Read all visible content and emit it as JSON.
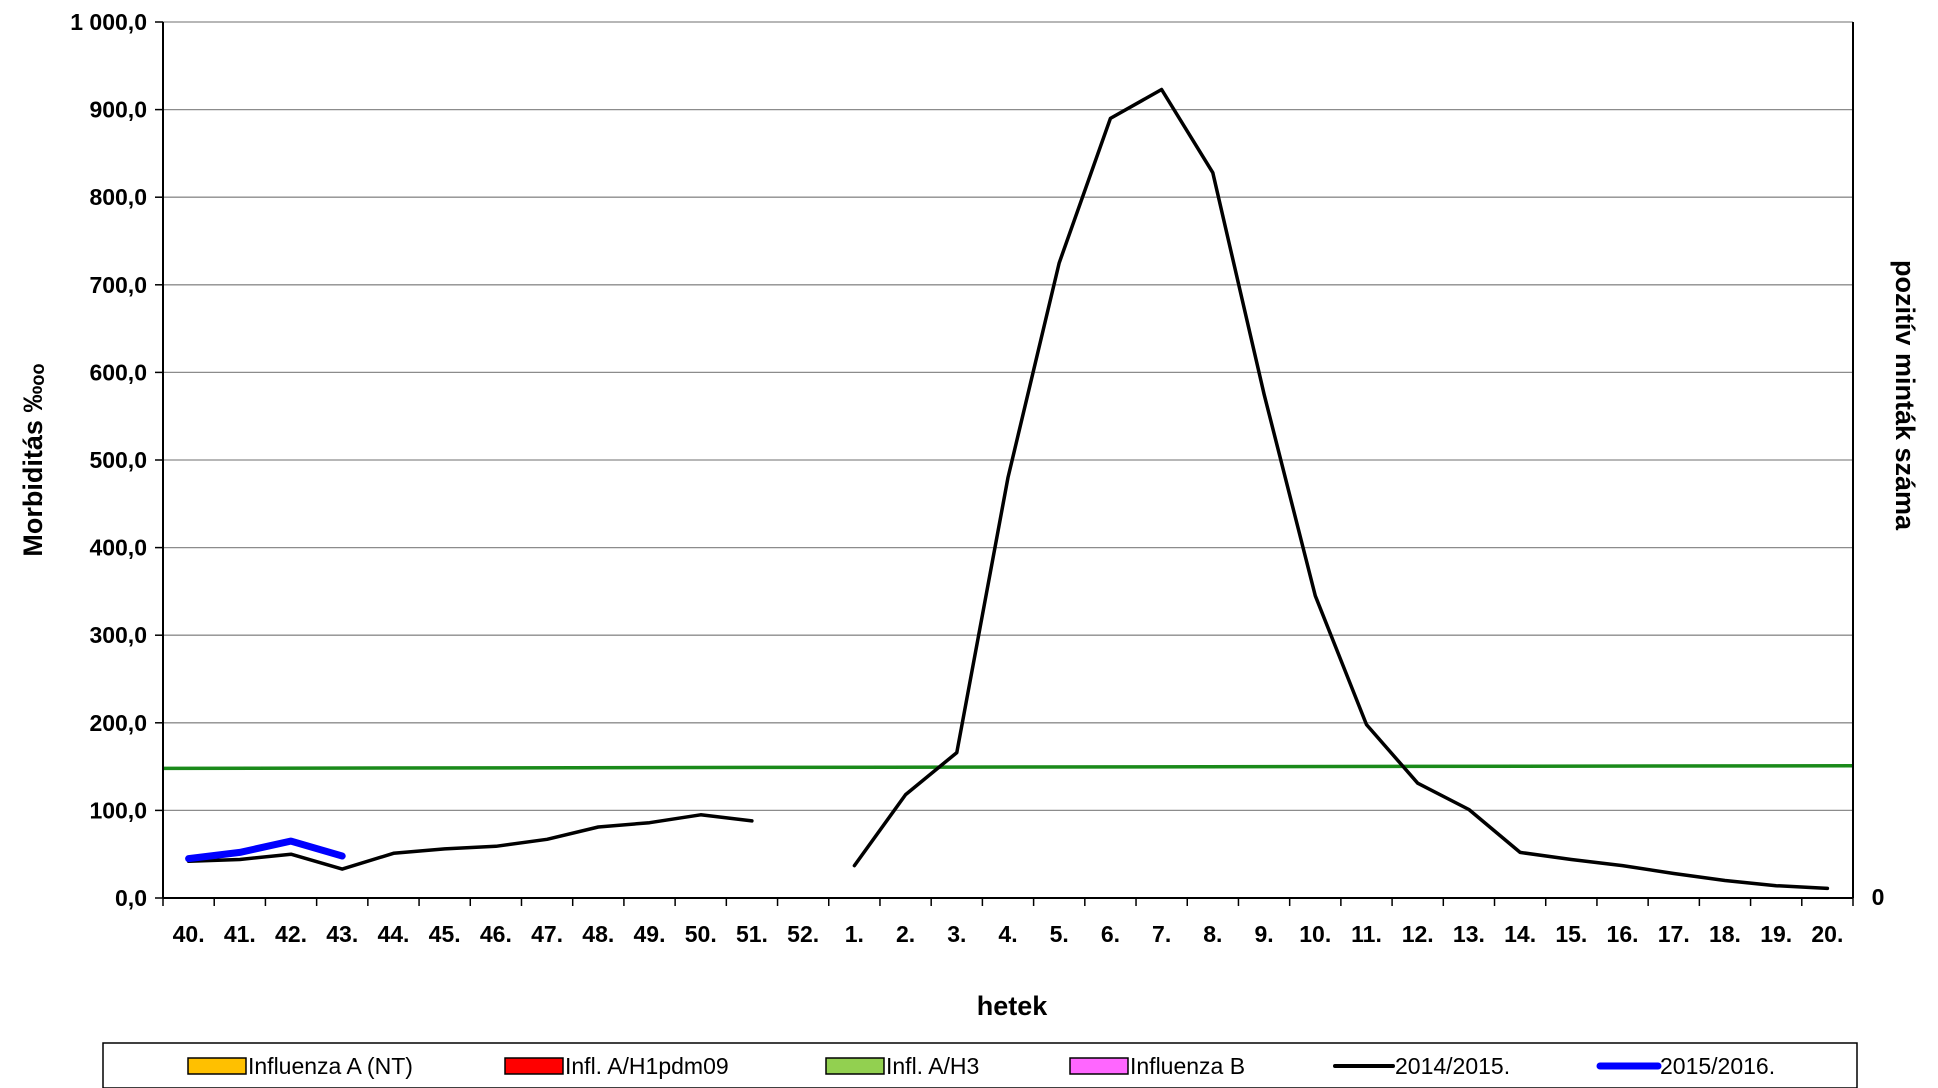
{
  "chart_data": {
    "type": "line",
    "xlabel": "hetek",
    "ylabel": "Morbiditás ‰ₒₒ",
    "ylabel_right": "pozitív minták száma",
    "ylim": [
      0,
      1000
    ],
    "yticks": [
      "0,0",
      "100,0",
      "200,0",
      "300,0",
      "400,0",
      "500,0",
      "600,0",
      "700,0",
      "800,0",
      "900,0",
      "1 000,0"
    ],
    "right_axis_ticks": [
      "0"
    ],
    "grid": true,
    "legend_position": "bottom",
    "categories": [
      "40.",
      "41.",
      "42.",
      "43.",
      "44.",
      "45.",
      "46.",
      "47.",
      "48.",
      "49.",
      "50.",
      "51.",
      "52.",
      "1.",
      "2.",
      "3.",
      "4.",
      "5.",
      "6.",
      "7.",
      "8.",
      "9.",
      "10.",
      "11.",
      "12.",
      "13.",
      "14.",
      "15.",
      "16.",
      "17.",
      "18.",
      "19.",
      "20."
    ],
    "series": [
      {
        "name": "2014/2015.",
        "color": "#000000",
        "values": [
          42,
          44,
          50,
          33,
          51,
          56,
          59,
          67,
          81,
          86,
          95,
          88,
          null,
          37,
          118,
          166,
          480,
          725,
          890,
          923,
          828,
          575,
          345,
          198,
          131,
          101,
          52,
          44,
          37,
          28,
          20,
          14,
          11
        ]
      },
      {
        "name": "2015/2016.",
        "color": "#0000ff",
        "values": [
          45,
          52,
          65,
          48,
          null,
          null,
          null,
          null,
          null,
          null,
          null,
          null,
          null,
          null,
          null,
          null,
          null,
          null,
          null,
          null,
          null,
          null,
          null,
          null,
          null,
          null,
          null,
          null,
          null,
          null,
          null,
          null,
          null
        ]
      }
    ],
    "threshold": {
      "color": "#1a8a1a",
      "start": 148,
      "end": 151
    },
    "legend": [
      {
        "label": "Influenza A (NT)",
        "color": "#ffc000",
        "marker": "box"
      },
      {
        "label": "Infl. A/H1pdm09",
        "color": "#ff0000",
        "marker": "box"
      },
      {
        "label": "Infl. A/H3",
        "color": "#92d050",
        "marker": "box"
      },
      {
        "label": "Influenza B",
        "color": "#ff66ff",
        "marker": "box"
      },
      {
        "label": "2014/2015.",
        "color": "#000000",
        "marker": "line"
      },
      {
        "label": "2015/2016.",
        "color": "#0000ff",
        "marker": "line"
      }
    ]
  }
}
